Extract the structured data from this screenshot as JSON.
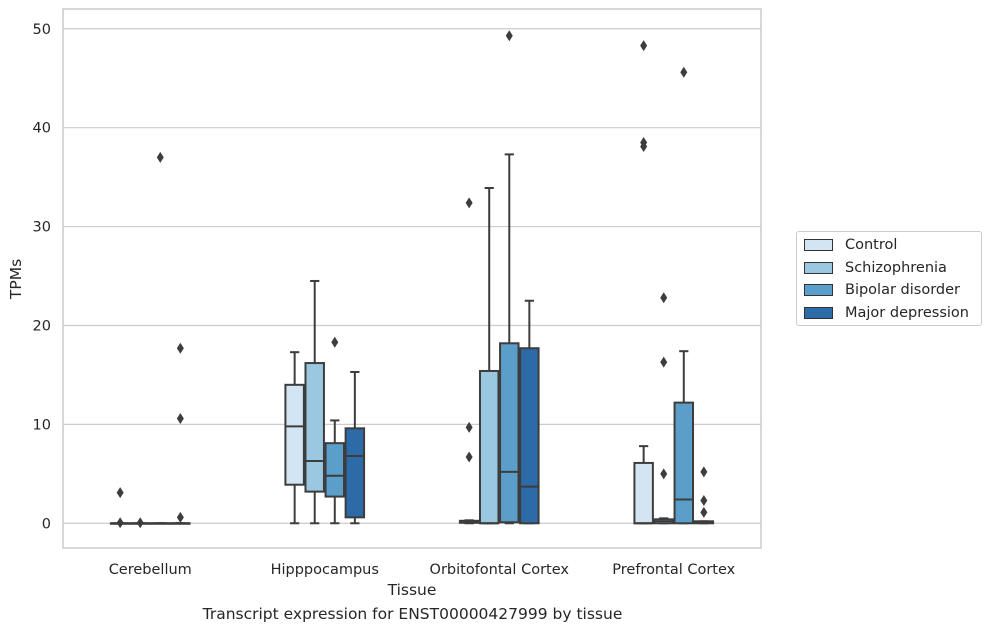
{
  "chart_data": {
    "type": "box",
    "xlabel": "Tissue",
    "ylabel": "TPMs",
    "ylim": [
      -2.5,
      52
    ],
    "yticks": [
      0,
      10,
      20,
      30,
      40,
      50
    ],
    "grid": "horizontal",
    "legend_position": "right",
    "categories": [
      "Cerebellum",
      "Hipppocampus",
      "Orbitofontal Cortex",
      "Prefrontal Cortex"
    ],
    "series": [
      {
        "name": "Control",
        "color": "#d3e4f3",
        "boxes": [
          {
            "q1": 0,
            "median": 0,
            "q3": 0,
            "whisker_low": 0,
            "whisker_high": 0,
            "outliers": [
              3.1,
              0.05
            ]
          },
          {
            "q1": 3.9,
            "median": 9.8,
            "q3": 14.0,
            "whisker_low": 0,
            "whisker_high": 17.3,
            "outliers": []
          },
          {
            "q1": 0.05,
            "median": 0.15,
            "q3": 0.25,
            "whisker_low": 0,
            "whisker_high": 0.3,
            "outliers": [
              32.4,
              9.7,
              6.7
            ]
          },
          {
            "q1": 0,
            "median": 0,
            "q3": 6.1,
            "whisker_low": 0,
            "whisker_high": 7.8,
            "outliers": [
              48.3,
              38.5,
              38.1
            ]
          }
        ]
      },
      {
        "name": "Schizophrenia",
        "color": "#9ac8e0",
        "boxes": [
          {
            "q1": 0,
            "median": 0,
            "q3": 0,
            "whisker_low": 0,
            "whisker_high": 0,
            "outliers": [
              0.05
            ]
          },
          {
            "q1": 3.2,
            "median": 6.3,
            "q3": 16.2,
            "whisker_low": 0,
            "whisker_high": 24.5,
            "outliers": []
          },
          {
            "q1": 0,
            "median": 0,
            "q3": 15.4,
            "whisker_low": 0,
            "whisker_high": 33.9,
            "outliers": []
          },
          {
            "q1": 0,
            "median": 0.2,
            "q3": 0.4,
            "whisker_low": 0,
            "whisker_high": 0.5,
            "outliers": [
              22.8,
              16.3,
              5.0
            ]
          }
        ]
      },
      {
        "name": "Bipolar disorder",
        "color": "#5a9ec9",
        "boxes": [
          {
            "q1": 0,
            "median": 0,
            "q3": 0,
            "whisker_low": 0,
            "whisker_high": 0,
            "outliers": [
              37.0
            ]
          },
          {
            "q1": 2.7,
            "median": 4.8,
            "q3": 8.1,
            "whisker_low": 0,
            "whisker_high": 10.4,
            "outliers": [
              18.3
            ]
          },
          {
            "q1": 0.1,
            "median": 5.2,
            "q3": 18.2,
            "whisker_low": 0,
            "whisker_high": 37.3,
            "outliers": [
              49.3
            ]
          },
          {
            "q1": 0,
            "median": 2.4,
            "q3": 12.2,
            "whisker_low": 0,
            "whisker_high": 17.4,
            "outliers": [
              45.6
            ]
          }
        ]
      },
      {
        "name": "Major depression",
        "color": "#2c6aa8",
        "boxes": [
          {
            "q1": 0,
            "median": 0,
            "q3": 0,
            "whisker_low": 0,
            "whisker_high": 0,
            "outliers": [
              17.7,
              10.6,
              0.6
            ]
          },
          {
            "q1": 0.6,
            "median": 6.8,
            "q3": 9.6,
            "whisker_low": 0,
            "whisker_high": 15.3,
            "outliers": []
          },
          {
            "q1": 0,
            "median": 3.7,
            "q3": 17.7,
            "whisker_low": 0,
            "whisker_high": 22.5,
            "outliers": []
          },
          {
            "q1": 0,
            "median": 0.1,
            "q3": 0.2,
            "whisker_low": 0,
            "whisker_high": 0.2,
            "outliers": [
              5.2,
              2.3,
              1.1
            ]
          }
        ]
      }
    ]
  },
  "caption": "Transcript expression for ENST00000427999 by tissue"
}
